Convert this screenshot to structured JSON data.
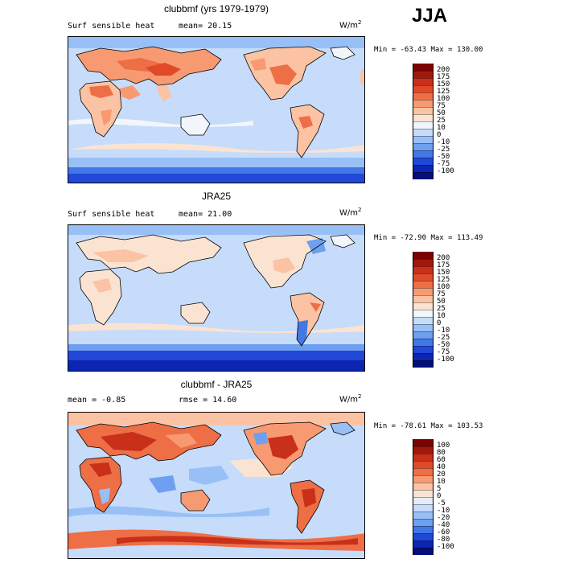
{
  "season": "JJA",
  "unit_text": "W/m",
  "unit_exp": "2",
  "panels": [
    {
      "title": "clubbmf (yrs 1979-1979)",
      "left_label": "Surf sensible heat",
      "mid_label": "mean=  20.15",
      "minmax": "Min = -63.43 Max = 130.00",
      "scale": "abs"
    },
    {
      "title": "JRA25",
      "left_label": "Surf sensible heat",
      "mid_label": "mean=  21.00",
      "minmax": "Min = -72.90 Max = 113.49",
      "scale": "abs"
    },
    {
      "title": "clubbmf - JRA25",
      "left_label": "mean =  -0.85",
      "mid_label": "rmse =  14.60",
      "minmax": "Min = -78.61 Max = 103.53",
      "scale": "diff"
    }
  ],
  "colorbars": {
    "abs": {
      "labels": [
        "200",
        "175",
        "150",
        "125",
        "100",
        "75",
        "50",
        "25",
        "10",
        "0",
        "-10",
        "-25",
        "-50",
        "-75",
        "-100"
      ],
      "colors": [
        "#7a0403",
        "#a3180c",
        "#c8301a",
        "#e04a28",
        "#ee6e46",
        "#f79a72",
        "#fbc3a3",
        "#fbe3d2",
        "#f2f6fb",
        "#c6dcfa",
        "#99c0f6",
        "#6e9ff0",
        "#4377e6",
        "#2148d6",
        "#0c26b2",
        "#040f7a"
      ]
    },
    "diff": {
      "labels": [
        "100",
        "80",
        "60",
        "40",
        "20",
        "10",
        "5",
        "0",
        "-5",
        "-10",
        "-20",
        "-40",
        "-60",
        "-80",
        "-100"
      ],
      "colors": [
        "#7a0403",
        "#a3180c",
        "#c8301a",
        "#e04a28",
        "#ee6e46",
        "#f79a72",
        "#fbc3a3",
        "#fbe3d2",
        "#e3ecf8",
        "#c6dcfa",
        "#99c0f6",
        "#6e9ff0",
        "#4377e6",
        "#2148d6",
        "#0c26b2",
        "#040f7a"
      ]
    }
  }
}
